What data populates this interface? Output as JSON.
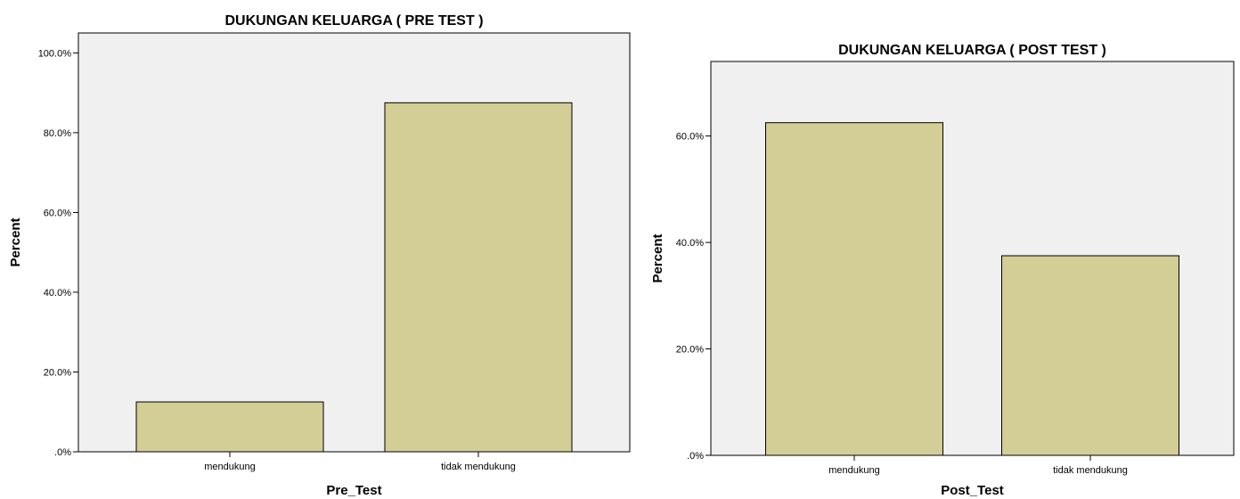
{
  "colors": {
    "bar_fill": "#d3cd96",
    "plot_bg": "#f0f0f0"
  },
  "chart_data": [
    {
      "type": "bar",
      "title": "DUKUNGAN KELUARGA ( PRE TEST )",
      "xlabel": "Pre_Test",
      "ylabel": "Percent",
      "categories": [
        "mendukung",
        "tidak mendukung"
      ],
      "values": [
        12.5,
        87.5
      ],
      "ylim": [
        0,
        105
      ],
      "yticks": [
        0,
        20,
        40,
        60,
        80,
        100
      ],
      "ytick_labels": [
        ".0%",
        "20.0%",
        "40.0%",
        "60.0%",
        "80.0%",
        "100.0%"
      ],
      "grid": false,
      "legend": "none"
    },
    {
      "type": "bar",
      "title": "DUKUNGAN KELUARGA ( POST TEST )",
      "xlabel": "Post_Test",
      "ylabel": "Percent",
      "categories": [
        "mendukung",
        "tidak mendukung"
      ],
      "values": [
        62.5,
        37.5
      ],
      "ylim": [
        0,
        74
      ],
      "yticks": [
        0,
        20,
        40,
        60
      ],
      "ytick_labels": [
        ".0%",
        "20.0%",
        "40.0%",
        "60.0%"
      ],
      "grid": false,
      "legend": "none"
    }
  ]
}
